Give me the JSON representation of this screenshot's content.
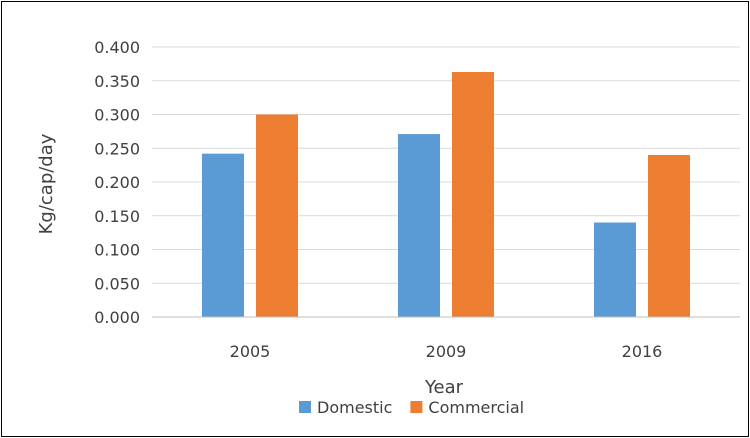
{
  "chart_data": {
    "type": "bar",
    "title": "",
    "xlabel": "Year",
    "ylabel": "Kg/cap/day",
    "categories": [
      "2005",
      "2009",
      "2016"
    ],
    "series": [
      {
        "name": "Domestic",
        "color": "#5B9BD5",
        "values": [
          0.242,
          0.271,
          0.14
        ]
      },
      {
        "name": "Commercial",
        "color": "#ED7D31",
        "values": [
          0.3,
          0.363,
          0.24
        ]
      }
    ],
    "ylim": [
      0,
      0.4
    ],
    "yticks": [
      "0.000",
      "0.050",
      "0.100",
      "0.150",
      "0.200",
      "0.250",
      "0.300",
      "0.350",
      "0.400"
    ],
    "grid": true,
    "legend_position": "bottom"
  }
}
